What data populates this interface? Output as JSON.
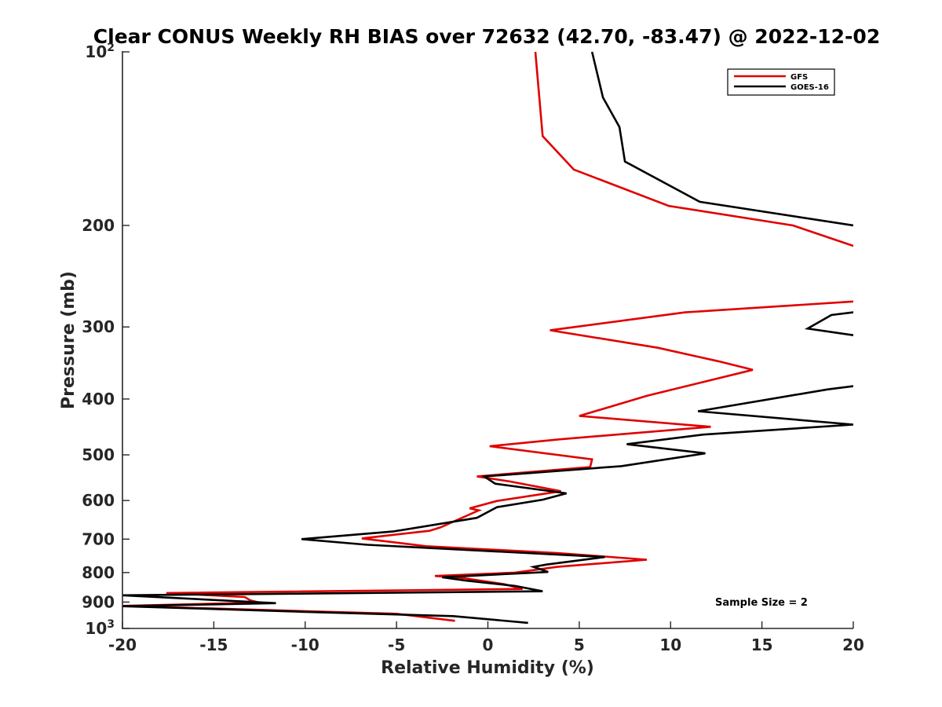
{
  "chart_data": {
    "type": "line",
    "title": "Clear CONUS Weekly RH BIAS over 72632 (42.70, -83.47) @ 2022-12-02",
    "xlabel": "Relative Humidity (%)",
    "ylabel": "Pressure (mb)",
    "xlim": [
      -20,
      20
    ],
    "ylim": [
      100,
      1000
    ],
    "y_scale": "log",
    "y_reversed": true,
    "xticks": [
      -20,
      -15,
      -10,
      -5,
      0,
      5,
      10,
      15,
      20
    ],
    "yticks": [
      {
        "value": 100,
        "label": "10",
        "sup": "2"
      },
      {
        "value": 200,
        "label": "200",
        "sup": ""
      },
      {
        "value": 300,
        "label": "300",
        "sup": ""
      },
      {
        "value": 400,
        "label": "400",
        "sup": ""
      },
      {
        "value": 500,
        "label": "500",
        "sup": ""
      },
      {
        "value": 600,
        "label": "600",
        "sup": ""
      },
      {
        "value": 700,
        "label": "700",
        "sup": ""
      },
      {
        "value": 800,
        "label": "800",
        "sup": ""
      },
      {
        "value": 900,
        "label": "900",
        "sup": ""
      },
      {
        "value": 1000,
        "label": "10",
        "sup": "3"
      }
    ],
    "legend_position": "top-right",
    "annotation": "Sample Size = 2",
    "series": [
      {
        "name": "GFS",
        "color": "#e00000",
        "segments": [
          [
            [
              2.6,
              100
            ],
            [
              3.0,
              140
            ],
            [
              4.7,
              160
            ],
            [
              9.9,
              185
            ],
            [
              16.7,
              200
            ],
            [
              20.0,
              217
            ]
          ],
          [
            [
              20.0,
              271
            ],
            [
              10.8,
              283
            ],
            [
              3.4,
              304
            ],
            [
              9.3,
              326
            ],
            [
              12.6,
              344
            ],
            [
              14.5,
              356
            ],
            [
              8.7,
              395
            ],
            [
              5.0,
              428
            ],
            [
              12.2,
              447
            ],
            [
              3.9,
              470
            ],
            [
              0.1,
              483
            ],
            [
              5.7,
              509
            ],
            [
              5.6,
              525
            ],
            [
              -0.6,
              545
            ],
            [
              1.2,
              556
            ],
            [
              4.0,
              578
            ],
            [
              0.5,
              601
            ],
            [
              -1.0,
              619
            ],
            [
              -0.5,
              624
            ],
            [
              -2.6,
              668
            ],
            [
              -3.2,
              677
            ],
            [
              -6.9,
              698
            ],
            [
              -3.4,
              720
            ],
            [
              3.8,
              740
            ],
            [
              8.7,
              760
            ],
            [
              3.8,
              782
            ],
            [
              1.5,
              800
            ],
            [
              -2.9,
              811
            ],
            [
              -1.3,
              818
            ],
            [
              0.9,
              838
            ],
            [
              1.9,
              854
            ],
            [
              -17.6,
              868
            ],
            [
              -13.3,
              882
            ],
            [
              -13.0,
              894
            ],
            [
              -12.5,
              902
            ],
            [
              -20.0,
              914
            ],
            [
              -5.0,
              943
            ],
            [
              -1.8,
              970
            ]
          ]
        ]
      },
      {
        "name": "GOES-16",
        "color": "#000000",
        "segments": [
          [
            [
              5.7,
              100
            ],
            [
              6.3,
              120
            ],
            [
              7.2,
              135
            ],
            [
              7.5,
              155
            ],
            [
              11.6,
              182
            ],
            [
              20.0,
              200
            ]
          ],
          [
            [
              20.0,
              283
            ],
            [
              18.8,
              286
            ],
            [
              17.5,
              302
            ],
            [
              20.0,
              310
            ]
          ],
          [
            [
              20.0,
              380
            ],
            [
              18.6,
              385
            ],
            [
              11.5,
              420
            ],
            [
              20.0,
              443
            ],
            [
              11.8,
              461
            ],
            [
              7.6,
              479
            ],
            [
              11.9,
              497
            ],
            [
              7.3,
              523
            ],
            [
              -0.2,
              545
            ],
            [
              0.4,
              561
            ],
            [
              4.3,
              583
            ],
            [
              3.0,
              598
            ],
            [
              0.5,
              616
            ],
            [
              -0.6,
              643
            ],
            [
              -5.2,
              679
            ],
            [
              -10.2,
              700
            ],
            [
              -6.6,
              716
            ],
            [
              6.4,
              752
            ],
            [
              3.2,
              775
            ],
            [
              2.5,
              782
            ],
            [
              3.3,
              798
            ],
            [
              -2.5,
              815
            ],
            [
              -1.2,
              826
            ],
            [
              1.5,
              844
            ],
            [
              3.0,
              862
            ],
            [
              -20.0,
              876
            ],
            [
              -11.6,
              904
            ],
            [
              -20.0,
              915
            ],
            [
              -10.4,
              935
            ],
            [
              -1.9,
              952
            ],
            [
              2.2,
              978
            ]
          ]
        ]
      }
    ]
  }
}
